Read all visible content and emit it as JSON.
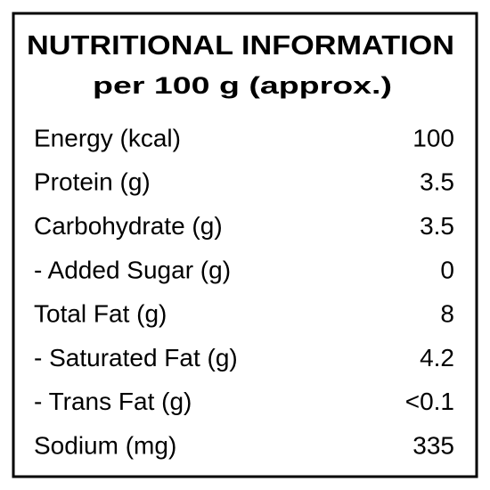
{
  "header": {
    "title": "NUTRITIONAL INFORMATION",
    "subtitle": "per 100 g (approx.)"
  },
  "table": {
    "rows": [
      [
        "Energy (kcal)",
        "100"
      ],
      [
        "Protein (g)",
        "3.5"
      ],
      [
        "Carbohydrate (g)",
        "3.5"
      ],
      [
        "- Added Sugar (g)",
        "0"
      ],
      [
        "Total Fat (g)",
        "8"
      ],
      [
        "- Saturated Fat (g)",
        "4.2"
      ],
      [
        "- Trans Fat (g)",
        "<0.1"
      ],
      [
        "Sodium (mg)",
        "335"
      ]
    ]
  }
}
